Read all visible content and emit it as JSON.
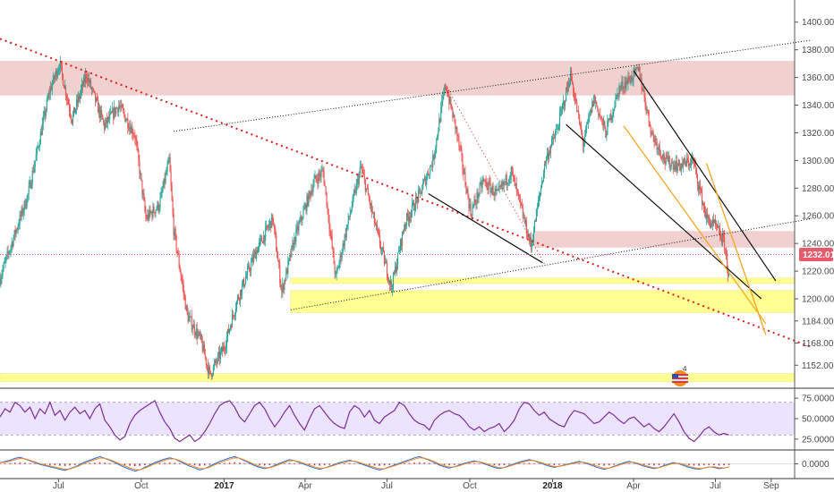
{
  "colors": {
    "bull": "#26a69a",
    "bear": "#ef5350",
    "resistance_zone": "#e8b3b0",
    "support_zone": "#ffff80",
    "rsi_band": "#e6d9ff",
    "rsi_line": "#7e2d9c",
    "red_trendline": "#e01b1b",
    "orange_line": "#f5a623",
    "black_line": "#111111",
    "price_badge": "#e8596b"
  },
  "current_price": "1232.01",
  "chart_data": [
    {
      "type": "candlestick",
      "panel": "price",
      "y_ticks": [
        "1400.00",
        "1380.00",
        "1360.00",
        "1340.00",
        "1320.00",
        "1300.00",
        "1280.00",
        "1260.00",
        "1240.00",
        "1220.00",
        "1200.00",
        "1184.00",
        "1168.00",
        "1152.00"
      ],
      "x_ticks": [
        "Jul",
        "Oct",
        "2017",
        "Apr",
        "Jul",
        "Oct",
        "2018",
        "Apr",
        "Jul",
        "Sep"
      ],
      "bold_x_ticks": [
        "2017",
        "2018"
      ],
      "ylim": [
        1136,
        1416
      ],
      "x_range": [
        "2016-05",
        "2018-10"
      ],
      "price_path": [
        [
          "2016-05-01",
          1215
        ],
        [
          "2016-06-01",
          1275
        ],
        [
          "2016-06-25",
          1350
        ],
        [
          "2016-07-06",
          1370
        ],
        [
          "2016-07-20",
          1330
        ],
        [
          "2016-08-05",
          1362
        ],
        [
          "2016-08-25",
          1325
        ],
        [
          "2016-09-10",
          1340
        ],
        [
          "2016-09-28",
          1318
        ],
        [
          "2016-10-10",
          1258
        ],
        [
          "2016-10-25",
          1268
        ],
        [
          "2016-11-05",
          1300
        ],
        [
          "2016-11-10",
          1250
        ],
        [
          "2016-11-25",
          1188
        ],
        [
          "2016-12-10",
          1170
        ],
        [
          "2016-12-20",
          1145
        ],
        [
          "2017-01-05",
          1165
        ],
        [
          "2017-01-20",
          1200
        ],
        [
          "2017-02-10",
          1235
        ],
        [
          "2017-02-28",
          1258
        ],
        [
          "2017-03-10",
          1205
        ],
        [
          "2017-03-25",
          1245
        ],
        [
          "2017-04-15",
          1285
        ],
        [
          "2017-04-25",
          1292
        ],
        [
          "2017-05-09",
          1215
        ],
        [
          "2017-05-25",
          1262
        ],
        [
          "2017-06-06",
          1295
        ],
        [
          "2017-06-25",
          1245
        ],
        [
          "2017-07-10",
          1208
        ],
        [
          "2017-07-25",
          1255
        ],
        [
          "2017-08-10",
          1275
        ],
        [
          "2017-08-25",
          1300
        ],
        [
          "2017-09-08",
          1355
        ],
        [
          "2017-09-20",
          1322
        ],
        [
          "2017-10-06",
          1262
        ],
        [
          "2017-10-20",
          1285
        ],
        [
          "2017-11-05",
          1275
        ],
        [
          "2017-11-20",
          1292
        ],
        [
          "2017-12-12",
          1238
        ],
        [
          "2017-12-28",
          1300
        ],
        [
          "2018-01-10",
          1322
        ],
        [
          "2018-01-25",
          1362
        ],
        [
          "2018-02-08",
          1312
        ],
        [
          "2018-02-20",
          1345
        ],
        [
          "2018-03-05",
          1320
        ],
        [
          "2018-03-20",
          1352
        ],
        [
          "2018-04-11",
          1365
        ],
        [
          "2018-04-25",
          1320
        ],
        [
          "2018-05-10",
          1300
        ],
        [
          "2018-05-25",
          1296
        ],
        [
          "2018-06-10",
          1300
        ],
        [
          "2018-06-25",
          1258
        ],
        [
          "2018-07-05",
          1252
        ],
        [
          "2018-07-15",
          1240
        ],
        [
          "2018-07-20",
          1215
        ]
      ],
      "zones": [
        {
          "kind": "resistance",
          "from_price": 1347,
          "to_price": 1372,
          "from_date": "2016-05-01",
          "to_date": "2018-10-20"
        },
        {
          "kind": "resistance",
          "from_price": 1237,
          "to_price": 1249,
          "from_date": "2017-12-15",
          "to_date": "2018-10-20"
        },
        {
          "kind": "support",
          "from_price": 1211,
          "to_price": 1215,
          "from_date": "2017-03-20",
          "to_date": "2018-10-20"
        },
        {
          "kind": "support",
          "from_price": 1190,
          "to_price": 1206,
          "from_date": "2017-03-20",
          "to_date": "2018-10-20"
        },
        {
          "kind": "support",
          "from_price": 1140,
          "to_price": 1146,
          "from_date": "2016-05-01",
          "to_date": "2018-10-20"
        }
      ],
      "trendlines": [
        {
          "style": "red-dotted",
          "from": [
            "2016-05-01",
            1388
          ],
          "to": [
            "2018-10-20",
            1165
          ]
        },
        {
          "style": "black-dotted",
          "from": [
            "2016-11-10",
            1321
          ],
          "to": [
            "2018-10-20",
            1387
          ]
        },
        {
          "style": "black-dotted",
          "from": [
            "2017-03-20",
            1192
          ],
          "to": [
            "2018-10-20",
            1258
          ]
        },
        {
          "style": "red-thin-dotted",
          "from": [
            "2017-09-08",
            1355
          ],
          "to": [
            "2017-12-28",
            1224
          ]
        },
        {
          "style": "black",
          "from": [
            "2017-08-20",
            1276
          ],
          "to": [
            "2017-12-25",
            1226
          ]
        },
        {
          "style": "black",
          "from": [
            "2018-01-20",
            1326
          ],
          "to": [
            "2018-08-25",
            1200
          ]
        },
        {
          "style": "black",
          "from": [
            "2018-04-05",
            1365
          ],
          "to": [
            "2018-09-10",
            1213
          ]
        },
        {
          "style": "orange",
          "from": [
            "2018-03-25",
            1325
          ],
          "to": [
            "2018-08-30",
            1182
          ]
        },
        {
          "style": "orange",
          "from": [
            "2018-06-25",
            1298
          ],
          "to": [
            "2018-08-30",
            1174
          ]
        }
      ]
    },
    {
      "type": "line",
      "panel": "rsi",
      "y_ticks": [
        "75.0000",
        "50.0000",
        "25.0000"
      ],
      "ylim": [
        15,
        85
      ],
      "band": [
        30,
        70
      ],
      "values": [
        52,
        62,
        58,
        70,
        66,
        58,
        64,
        50,
        62,
        56,
        70,
        54,
        60,
        48,
        58,
        64,
        56,
        60,
        50,
        62,
        68,
        48,
        40,
        30,
        24,
        28,
        44,
        54,
        60,
        64,
        68,
        72,
        58,
        46,
        38,
        26,
        22,
        26,
        30,
        22,
        26,
        34,
        44,
        56,
        66,
        70,
        72,
        64,
        52,
        46,
        56,
        66,
        70,
        62,
        50,
        40,
        48,
        58,
        66,
        54,
        44,
        36,
        50,
        62,
        66,
        58,
        50,
        44,
        40,
        38,
        58,
        66,
        62,
        52,
        60,
        48,
        44,
        52,
        56,
        60,
        70,
        66,
        56,
        48,
        44,
        42,
        36,
        48,
        54,
        58,
        60,
        56,
        54,
        48,
        40,
        36,
        40,
        34,
        38,
        40,
        44,
        34,
        40,
        48,
        62,
        70,
        68,
        60,
        54,
        58,
        50,
        46,
        42,
        40,
        52,
        60,
        58,
        56,
        50,
        44,
        46,
        52,
        58,
        54,
        48,
        44,
        50,
        52,
        46,
        40,
        44,
        38,
        34,
        40,
        48,
        56,
        46,
        34,
        26,
        22,
        28,
        36,
        40,
        34,
        30,
        32,
        30
      ]
    },
    {
      "type": "histogram",
      "panel": "oscillator",
      "y_ticks": [
        "0.0000"
      ],
      "ylim": [
        -2,
        2
      ],
      "values": [
        0.2,
        0.4,
        0.6,
        0.9,
        1.1,
        0.8,
        0.5,
        0.2,
        -0.1,
        -0.3,
        -0.5,
        -0.7,
        -0.9,
        -1.1,
        -0.8,
        -0.5,
        -0.1,
        0.3,
        0.6,
        0.9,
        1.2,
        0.9,
        0.6,
        0.2,
        -0.2,
        -0.6,
        -0.9,
        -1.2,
        -1.0,
        -0.6,
        -0.2,
        0.2,
        0.5,
        0.8,
        1.0,
        0.8,
        0.4,
        0.0,
        -0.4,
        -0.7,
        -1.0,
        -0.8,
        -0.4,
        0.0,
        0.4,
        0.7,
        1.0,
        1.2,
        0.9,
        0.5,
        0.1,
        -0.3,
        -0.6,
        -0.8,
        -0.6,
        -0.3,
        0.1,
        0.4,
        0.7,
        0.5,
        0.2,
        -0.1,
        -0.4,
        -0.7,
        -0.9,
        -0.7,
        -0.4,
        -0.1,
        0.2,
        0.4,
        0.6,
        0.4,
        0.1,
        -0.2,
        -0.5,
        -0.8,
        -1.0,
        -0.8,
        -0.5,
        -0.2,
        0.1,
        0.4,
        0.7,
        1.0,
        1.2,
        0.9,
        0.6,
        0.2,
        -0.2,
        -0.5,
        -0.7,
        -0.5,
        -0.2,
        0.1,
        0.3,
        0.5,
        0.3,
        0.0,
        -0.3,
        -0.6,
        -0.8,
        -0.6,
        -0.3,
        0.0,
        0.3,
        0.5,
        0.7,
        0.5,
        0.2,
        -0.1,
        -0.4,
        -0.6,
        -0.4,
        -0.2,
        0.0,
        0.2,
        0.4,
        0.2,
        -0.1,
        -0.4,
        -0.7,
        -0.9,
        -0.7,
        -0.4,
        -0.1,
        0.2,
        0.4,
        0.2,
        -0.1,
        -0.4,
        -0.6,
        -0.8,
        -0.6,
        -0.3,
        0.0,
        0.2,
        0.0,
        -0.3,
        -0.6,
        -0.8,
        -0.9,
        -0.7,
        -0.5,
        -0.6,
        -0.8,
        -0.7,
        -0.5
      ]
    }
  ]
}
